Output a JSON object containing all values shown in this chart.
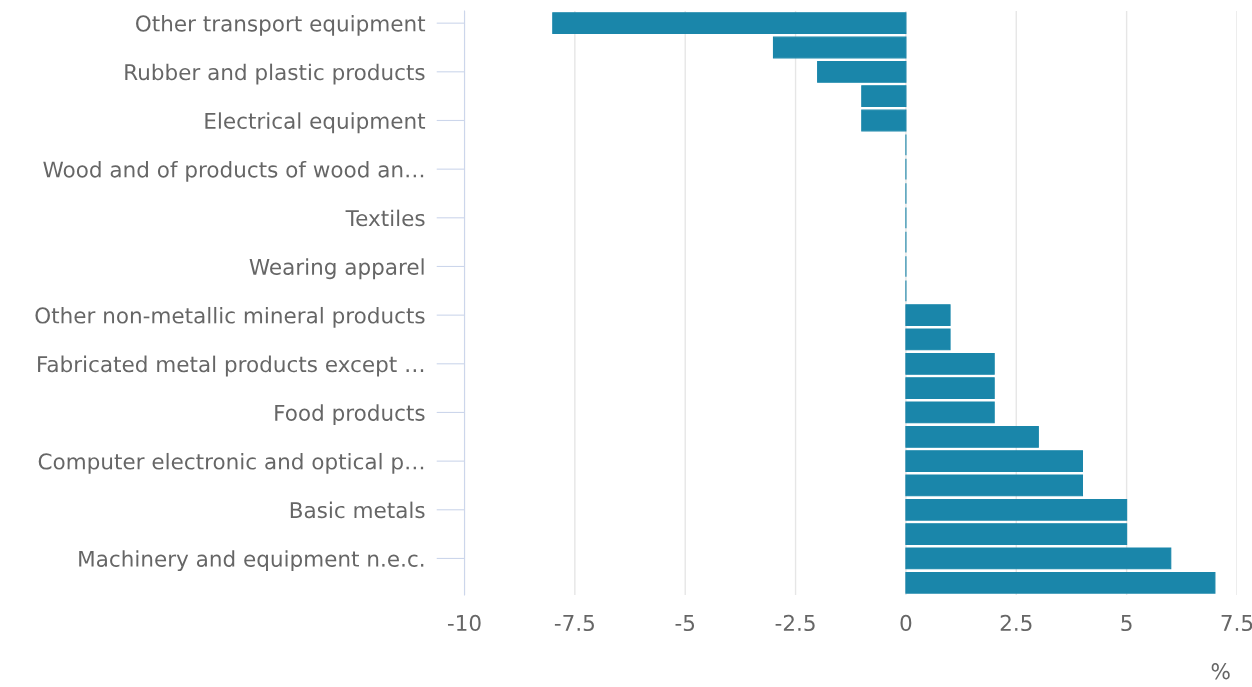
{
  "chart_data": {
    "type": "bar",
    "orientation": "horizontal",
    "xlabel": "%",
    "categories": [
      "Other transport equipment",
      null,
      "Rubber and plastic products",
      null,
      "Electrical equipment",
      null,
      "Wood and of products of wood an…",
      null,
      "Textiles",
      null,
      "Wearing apparel",
      null,
      "Other non-metallic mineral products",
      null,
      "Fabricated metal products except …",
      null,
      "Food products",
      null,
      "Computer electronic and optical p…",
      null,
      "Basic metals",
      null,
      "Machinery and equipment n.e.c.",
      null
    ],
    "values": [
      -8,
      -3,
      -2,
      -1,
      -1,
      0,
      0,
      0,
      0,
      0,
      0,
      0,
      1,
      1,
      2,
      2,
      2,
      3,
      4,
      4,
      5,
      5,
      6,
      7
    ],
    "color": "#1a86aa",
    "xlim": [
      -10,
      7.5
    ],
    "xticks": [
      -10,
      -7.5,
      -5,
      -2.5,
      0,
      2.5,
      5,
      7.5
    ],
    "grid": "x"
  }
}
